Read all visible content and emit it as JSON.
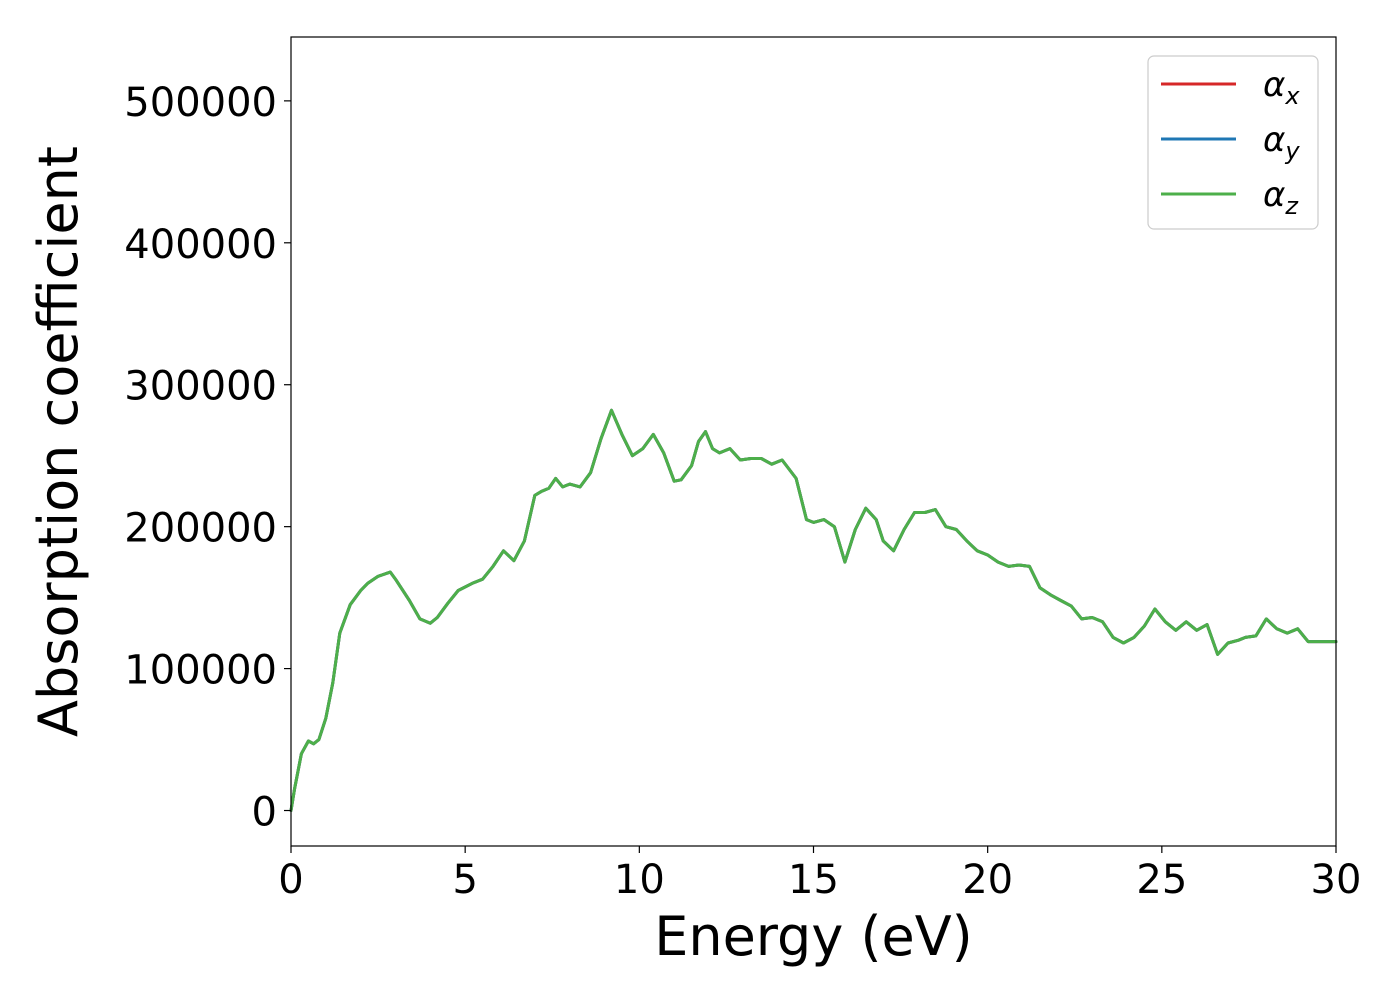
{
  "chart_data": {
    "type": "line",
    "xlabel": "Energy (eV)",
    "ylabel": "Absorption coefficient",
    "xlim": [
      0,
      30
    ],
    "ylim": [
      -25000,
      545000
    ],
    "xticks": [
      0,
      5,
      10,
      15,
      20,
      25,
      30
    ],
    "yticks": [
      0,
      100000,
      200000,
      300000,
      400000,
      500000
    ],
    "grid": false,
    "legend_position": "top-right",
    "series": [
      {
        "name": "α_x",
        "label_base": "α",
        "label_sub": "x",
        "color": "#d62728",
        "x": [
          0,
          0.1,
          0.3,
          0.5,
          0.65,
          0.8,
          1.0,
          1.2,
          1.4,
          1.7,
          2.0,
          2.2,
          2.5,
          2.85,
          3.0,
          3.4,
          3.7,
          4.0,
          4.2,
          4.5,
          4.8,
          5.2,
          5.5,
          5.8,
          6.1,
          6.4,
          6.7,
          7.0,
          7.2,
          7.4,
          7.6,
          7.8,
          8.0,
          8.3,
          8.6,
          8.9,
          9.2,
          9.5,
          9.8,
          10.1,
          10.4,
          10.7,
          11.0,
          11.2,
          11.5,
          11.7,
          11.9,
          12.1,
          12.3,
          12.6,
          12.9,
          13.2,
          13.5,
          13.8,
          14.1,
          14.5,
          14.8,
          15.0,
          15.3,
          15.6,
          15.9,
          16.2,
          16.5,
          16.8,
          17.0,
          17.3,
          17.6,
          17.9,
          18.2,
          18.5,
          18.8,
          19.1,
          19.4,
          19.7,
          20.0,
          20.3,
          20.6,
          20.9,
          21.2,
          21.5,
          21.8,
          22.1,
          22.4,
          22.7,
          23.0,
          23.3,
          23.6,
          23.9,
          24.2,
          24.5,
          24.8,
          25.1,
          25.4,
          25.7,
          26.0,
          26.3,
          26.6,
          26.9,
          27.2,
          27.4,
          27.7,
          28.0,
          28.3,
          28.6,
          28.9,
          29.2,
          29.5,
          29.8,
          30.0
        ],
        "y": [
          0,
          15000,
          40000,
          49000,
          47000,
          50000,
          65000,
          90000,
          125000,
          145000,
          155000,
          160000,
          165000,
          168000,
          163000,
          148000,
          135000,
          132000,
          136000,
          146000,
          155000,
          160000,
          163000,
          172000,
          183000,
          176000,
          190000,
          222000,
          225000,
          227000,
          234000,
          228000,
          230000,
          228000,
          238000,
          262000,
          282000,
          265000,
          250000,
          255000,
          265000,
          252000,
          232000,
          233000,
          243000,
          260000,
          267000,
          255000,
          252000,
          255000,
          247000,
          248000,
          248000,
          244000,
          247000,
          234000,
          205000,
          203000,
          205000,
          200000,
          175000,
          198000,
          213000,
          205000,
          190000,
          183000,
          198000,
          210000,
          210000,
          212000,
          200000,
          198000,
          190000,
          183000,
          180000,
          175000,
          172000,
          173000,
          172000,
          157000,
          152000,
          148000,
          144000,
          135000,
          136000,
          133000,
          122000,
          118000,
          122000,
          130000,
          142000,
          133000,
          127000,
          133000,
          127000,
          131000,
          110000,
          118000,
          120000,
          122000,
          123000,
          135000,
          128000,
          125000,
          128000,
          119000,
          119000,
          119000,
          119000
        ]
      },
      {
        "name": "α_y",
        "label_base": "α",
        "label_sub": "y",
        "color": "#1f77b4",
        "same_as": "α_x"
      },
      {
        "name": "α_z",
        "label_base": "α",
        "label_sub": "z",
        "color": "#4daf4a",
        "same_as": "α_x"
      }
    ]
  }
}
